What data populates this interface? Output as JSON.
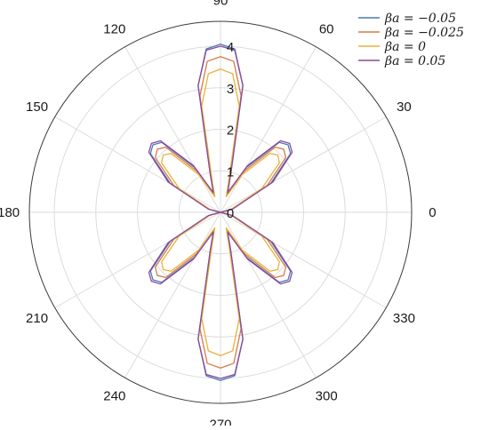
{
  "chart_data": {
    "type": "polar-line",
    "theta_unit": "degrees",
    "theta_ticks": [
      "0",
      "30",
      "60",
      "90",
      "120",
      "150",
      "180",
      "210",
      "240",
      "270",
      "300",
      "330"
    ],
    "r_ticks": [
      "0",
      "1",
      "2",
      "3",
      "4"
    ],
    "rlim": [
      0,
      4.6
    ],
    "grid": true,
    "legend_position": "top-right",
    "series": [
      {
        "name": "βa = −0.05",
        "color": "#4a7ab8",
        "points": [
          [
            0,
            0.0
          ],
          [
            15,
            0.3
          ],
          [
            30,
            1.4
          ],
          [
            40,
            2.2
          ],
          [
            45,
            2.3
          ],
          [
            50,
            2.2
          ],
          [
            60,
            1.25
          ],
          [
            70,
            0.5
          ],
          [
            75,
            0.95
          ],
          [
            80,
            3.1
          ],
          [
            85,
            3.95
          ],
          [
            90,
            4.05
          ],
          [
            95,
            3.95
          ],
          [
            100,
            3.1
          ],
          [
            105,
            0.95
          ],
          [
            110,
            0.5
          ],
          [
            120,
            1.25
          ],
          [
            130,
            2.2
          ],
          [
            135,
            2.3
          ],
          [
            140,
            2.2
          ],
          [
            150,
            1.4
          ],
          [
            165,
            0.3
          ],
          [
            180,
            0.0
          ],
          [
            195,
            0.3
          ],
          [
            210,
            1.4
          ],
          [
            220,
            2.2
          ],
          [
            225,
            2.3
          ],
          [
            230,
            2.2
          ],
          [
            240,
            1.25
          ],
          [
            250,
            0.5
          ],
          [
            255,
            0.95
          ],
          [
            260,
            3.1
          ],
          [
            265,
            3.95
          ],
          [
            270,
            4.05
          ],
          [
            275,
            3.95
          ],
          [
            280,
            3.1
          ],
          [
            285,
            0.95
          ],
          [
            290,
            0.5
          ],
          [
            300,
            1.25
          ],
          [
            310,
            2.2
          ],
          [
            315,
            2.3
          ],
          [
            320,
            2.2
          ],
          [
            330,
            1.4
          ],
          [
            345,
            0.3
          ],
          [
            360,
            0.0
          ]
        ]
      },
      {
        "name": "βa = −0.025",
        "color": "#d97b45",
        "points": [
          [
            0,
            0.0
          ],
          [
            15,
            0.28
          ],
          [
            30,
            1.3
          ],
          [
            40,
            2.05
          ],
          [
            45,
            2.15
          ],
          [
            50,
            2.05
          ],
          [
            60,
            1.15
          ],
          [
            70,
            0.45
          ],
          [
            75,
            0.85
          ],
          [
            80,
            2.85
          ],
          [
            85,
            3.65
          ],
          [
            90,
            3.75
          ],
          [
            95,
            3.65
          ],
          [
            100,
            2.85
          ],
          [
            105,
            0.85
          ],
          [
            110,
            0.45
          ],
          [
            120,
            1.15
          ],
          [
            130,
            2.05
          ],
          [
            135,
            2.15
          ],
          [
            140,
            2.05
          ],
          [
            150,
            1.3
          ],
          [
            165,
            0.28
          ],
          [
            180,
            0.0
          ],
          [
            195,
            0.28
          ],
          [
            210,
            1.3
          ],
          [
            220,
            2.05
          ],
          [
            225,
            2.15
          ],
          [
            230,
            2.05
          ],
          [
            240,
            1.15
          ],
          [
            250,
            0.45
          ],
          [
            255,
            0.85
          ],
          [
            260,
            2.85
          ],
          [
            265,
            3.65
          ],
          [
            270,
            3.75
          ],
          [
            275,
            3.65
          ],
          [
            280,
            2.85
          ],
          [
            285,
            0.85
          ],
          [
            290,
            0.45
          ],
          [
            300,
            1.15
          ],
          [
            310,
            2.05
          ],
          [
            315,
            2.15
          ],
          [
            320,
            2.05
          ],
          [
            330,
            1.3
          ],
          [
            345,
            0.28
          ],
          [
            360,
            0.0
          ]
        ]
      },
      {
        "name": "βa = 0",
        "color": "#e8b23a",
        "points": [
          [
            0,
            0.0
          ],
          [
            15,
            0.25
          ],
          [
            30,
            1.15
          ],
          [
            40,
            1.85
          ],
          [
            45,
            1.95
          ],
          [
            50,
            1.85
          ],
          [
            60,
            1.05
          ],
          [
            70,
            0.4
          ],
          [
            75,
            0.75
          ],
          [
            80,
            2.6
          ],
          [
            85,
            3.35
          ],
          [
            90,
            3.45
          ],
          [
            95,
            3.35
          ],
          [
            100,
            2.6
          ],
          [
            105,
            0.75
          ],
          [
            110,
            0.4
          ],
          [
            120,
            1.05
          ],
          [
            130,
            1.85
          ],
          [
            135,
            1.95
          ],
          [
            140,
            1.85
          ],
          [
            150,
            1.15
          ],
          [
            165,
            0.25
          ],
          [
            180,
            0.0
          ],
          [
            195,
            0.25
          ],
          [
            210,
            1.15
          ],
          [
            220,
            1.85
          ],
          [
            225,
            1.95
          ],
          [
            230,
            1.85
          ],
          [
            240,
            1.05
          ],
          [
            250,
            0.4
          ],
          [
            255,
            0.75
          ],
          [
            260,
            2.6
          ],
          [
            265,
            3.35
          ],
          [
            270,
            3.45
          ],
          [
            275,
            3.35
          ],
          [
            280,
            2.6
          ],
          [
            285,
            0.75
          ],
          [
            290,
            0.4
          ],
          [
            300,
            1.05
          ],
          [
            310,
            1.85
          ],
          [
            315,
            1.95
          ],
          [
            320,
            1.85
          ],
          [
            330,
            1.15
          ],
          [
            345,
            0.25
          ],
          [
            360,
            0.0
          ]
        ]
      },
      {
        "name": "βa = 0.05",
        "color": "#8a4a9c",
        "points": [
          [
            0,
            0.0
          ],
          [
            15,
            0.3
          ],
          [
            30,
            1.45
          ],
          [
            40,
            2.25
          ],
          [
            45,
            2.35
          ],
          [
            50,
            2.25
          ],
          [
            60,
            1.3
          ],
          [
            70,
            0.5
          ],
          [
            75,
            0.95
          ],
          [
            80,
            3.1
          ],
          [
            85,
            3.92
          ],
          [
            90,
            4.0
          ],
          [
            95,
            3.92
          ],
          [
            100,
            3.1
          ],
          [
            105,
            0.95
          ],
          [
            110,
            0.5
          ],
          [
            120,
            1.3
          ],
          [
            130,
            2.25
          ],
          [
            135,
            2.35
          ],
          [
            140,
            2.25
          ],
          [
            150,
            1.45
          ],
          [
            165,
            0.3
          ],
          [
            180,
            0.0
          ],
          [
            195,
            0.3
          ],
          [
            210,
            1.45
          ],
          [
            220,
            2.25
          ],
          [
            225,
            2.35
          ],
          [
            230,
            2.25
          ],
          [
            240,
            1.3
          ],
          [
            250,
            0.5
          ],
          [
            255,
            0.95
          ],
          [
            260,
            3.1
          ],
          [
            265,
            3.92
          ],
          [
            270,
            4.0
          ],
          [
            275,
            3.92
          ],
          [
            280,
            3.1
          ],
          [
            285,
            0.95
          ],
          [
            290,
            0.5
          ],
          [
            300,
            1.3
          ],
          [
            310,
            2.25
          ],
          [
            315,
            2.35
          ],
          [
            320,
            2.25
          ],
          [
            330,
            1.45
          ],
          [
            345,
            0.3
          ],
          [
            360,
            0.0
          ]
        ]
      }
    ]
  }
}
